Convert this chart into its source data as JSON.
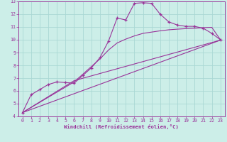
{
  "xlabel": "Windchill (Refroidissement éolien,°C)",
  "bg_color": "#cceee8",
  "grid_color": "#aad8d4",
  "line_color": "#993399",
  "spine_color": "#993399",
  "xlim": [
    -0.5,
    23.5
  ],
  "ylim": [
    4,
    13
  ],
  "xticks": [
    0,
    1,
    2,
    3,
    4,
    5,
    6,
    7,
    8,
    9,
    10,
    11,
    12,
    13,
    14,
    15,
    16,
    17,
    18,
    19,
    20,
    21,
    22,
    23
  ],
  "yticks": [
    4,
    5,
    6,
    7,
    8,
    9,
    10,
    11,
    12,
    13
  ],
  "line1_x": [
    0,
    1,
    2,
    3,
    4,
    5,
    6,
    7,
    8,
    9,
    10,
    11,
    12,
    13,
    14,
    15,
    16,
    17,
    18,
    19,
    20,
    21,
    22,
    23
  ],
  "line1_y": [
    4.3,
    5.7,
    6.1,
    6.5,
    6.7,
    6.65,
    6.6,
    7.2,
    7.8,
    8.6,
    9.9,
    11.7,
    11.55,
    12.85,
    12.9,
    12.85,
    12.0,
    11.4,
    11.15,
    11.05,
    11.05,
    10.9,
    10.5,
    10.0
  ],
  "line2_x": [
    0,
    6,
    7,
    8,
    9,
    10,
    11,
    12,
    13,
    14,
    15,
    16,
    17,
    18,
    19,
    20,
    21,
    22,
    23
  ],
  "line2_y": [
    4.3,
    6.7,
    7.3,
    7.9,
    8.5,
    9.2,
    9.75,
    10.05,
    10.3,
    10.5,
    10.6,
    10.7,
    10.78,
    10.83,
    10.87,
    10.9,
    10.95,
    10.97,
    10.0
  ],
  "line3_x": [
    0,
    23
  ],
  "line3_y": [
    4.3,
    9.97
  ],
  "line4_x": [
    0,
    6,
    23
  ],
  "line4_y": [
    4.3,
    6.8,
    9.97
  ]
}
